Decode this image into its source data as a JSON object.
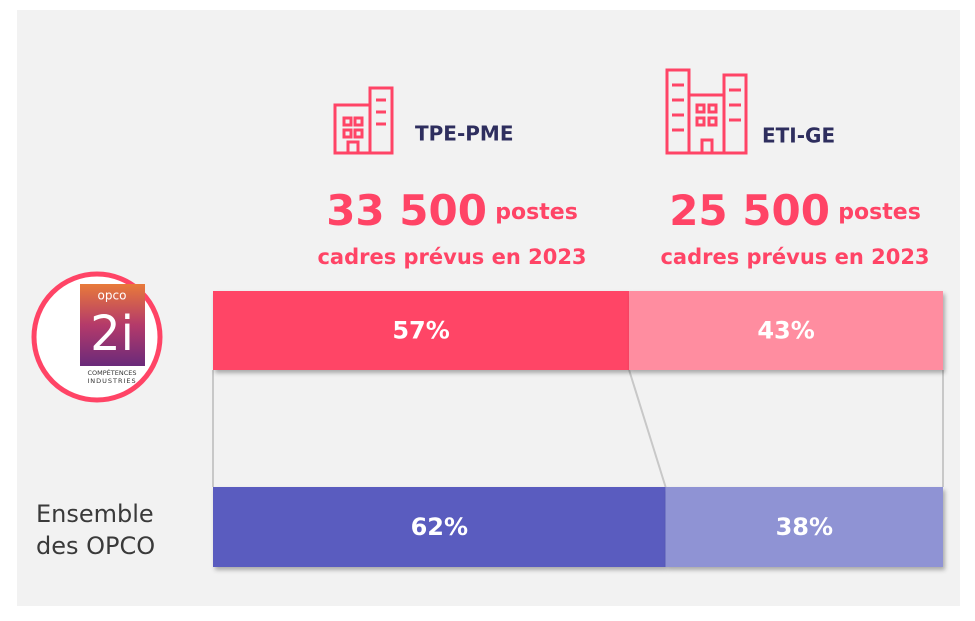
{
  "chart_data": {
    "type": "bar",
    "orientation": "horizontal",
    "stacked": true,
    "categories": [
      null,
      "Ensemble des OPCO"
    ],
    "xlim": [
      0,
      100
    ],
    "series": [
      {
        "name": "TPE-PME",
        "colors": [
          "#ff4466",
          "#5a5cbf"
        ],
        "values": [
          57,
          62
        ],
        "value_labels": [
          "57%",
          "62%"
        ],
        "headline": "33 500",
        "unit": "postes",
        "caption": "cadres prévus en 2023"
      },
      {
        "name": "ETI-GE",
        "colors": [
          "#ff8da0",
          "#8f93d4"
        ],
        "values": [
          43,
          38
        ],
        "value_labels": [
          "43%",
          "38%"
        ],
        "headline": "25 500",
        "unit": "postes",
        "caption": "cadres prévus en 2023"
      }
    ]
  },
  "logo": {
    "top": "opco",
    "main": "2i",
    "line1": "COMPÉTENCES",
    "line2": "INDUSTRIES"
  }
}
